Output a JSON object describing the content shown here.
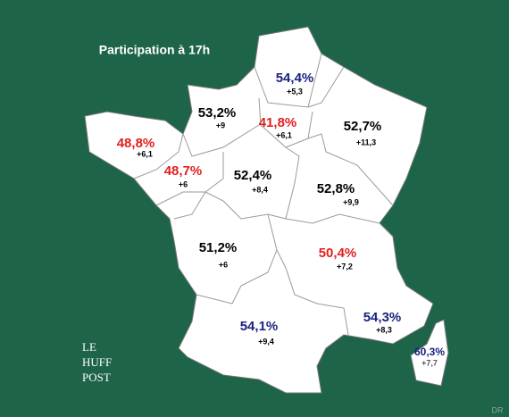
{
  "title": "Participation à 17h",
  "regions": [
    {
      "participation": "54,4%",
      "change": "+5,3",
      "color": "#1a237e"
    },
    {
      "participation": "53,2%",
      "change": "+9",
      "color": "#000000"
    },
    {
      "participation": "41,8%",
      "change": "+6,1",
      "color": "#e02020"
    },
    {
      "participation": "52,7%",
      "change": "+11,3",
      "color": "#000000"
    },
    {
      "participation": "48,8%",
      "change": "+6,1",
      "color": "#e02020"
    },
    {
      "participation": "48,7%",
      "change": "+6",
      "color": "#e02020"
    },
    {
      "participation": "52,4%",
      "change": "+8,4",
      "color": "#000000"
    },
    {
      "participation": "52,8%",
      "change": "+9,9",
      "color": "#000000"
    },
    {
      "participation": "51,2%",
      "change": "+6",
      "color": "#000000"
    },
    {
      "participation": "50,4%",
      "change": "+7,2",
      "color": "#e02020"
    },
    {
      "participation": "54,1%",
      "change": "+9,4",
      "color": "#1a237e"
    },
    {
      "participation": "54,3%",
      "change": "+8,3",
      "color": "#1a237e"
    },
    {
      "participation": "60,3%",
      "change": "+7,7",
      "color": "#1a237e"
    }
  ],
  "logo": [
    "LE",
    "HUFF",
    "POST"
  ],
  "credit": "DR"
}
